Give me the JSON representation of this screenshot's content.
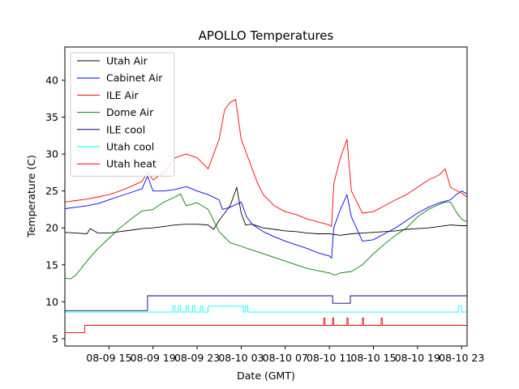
{
  "chart_data": {
    "type": "line",
    "title": "APOLLO Temperatures",
    "xlabel": "Date (GMT)",
    "ylabel": "Temperature (C)",
    "x_unit": "hours since 08-09 11:00 GMT",
    "xlim": [
      0,
      36.5
    ],
    "ylim": [
      4,
      44.5
    ],
    "x_ticks": [
      {
        "value": 4,
        "label": "08-09 15"
      },
      {
        "value": 8,
        "label": "08-09 19"
      },
      {
        "value": 12,
        "label": "08-09 23"
      },
      {
        "value": 16,
        "label": "08-10 03"
      },
      {
        "value": 20,
        "label": "08-10 07"
      },
      {
        "value": 24,
        "label": "08-10 11"
      },
      {
        "value": 28,
        "label": "08-10 15"
      },
      {
        "value": 32,
        "label": "08-10 19"
      },
      {
        "value": 36,
        "label": "08-10 23"
      }
    ],
    "y_ticks": [
      {
        "value": 5,
        "label": "5"
      },
      {
        "value": 10,
        "label": "10"
      },
      {
        "value": 15,
        "label": "15"
      },
      {
        "value": 20,
        "label": "20"
      },
      {
        "value": 25,
        "label": "25"
      },
      {
        "value": 30,
        "label": "30"
      },
      {
        "value": 35,
        "label": "35"
      },
      {
        "value": 40,
        "label": "40"
      }
    ],
    "grid": false,
    "legend_position": "upper-left",
    "series": [
      {
        "name": "Utah Air",
        "color": "#000000",
        "points": [
          [
            0,
            19.4
          ],
          [
            1,
            19.3
          ],
          [
            2,
            19.2
          ],
          [
            2.3,
            19.9
          ],
          [
            3,
            19.3
          ],
          [
            4,
            19.3
          ],
          [
            5,
            19.5
          ],
          [
            6,
            19.7
          ],
          [
            7,
            19.9
          ],
          [
            8,
            20.0
          ],
          [
            9,
            20.2
          ],
          [
            10,
            20.4
          ],
          [
            11,
            20.5
          ],
          [
            12,
            20.5
          ],
          [
            13,
            20.4
          ],
          [
            13.5,
            19.8
          ],
          [
            14,
            21
          ],
          [
            15,
            23
          ],
          [
            15.6,
            25.5
          ],
          [
            16,
            22
          ],
          [
            16.4,
            20.4
          ],
          [
            17,
            20.5
          ],
          [
            18,
            20.0
          ],
          [
            19,
            19.8
          ],
          [
            20,
            19.6
          ],
          [
            21,
            19.5
          ],
          [
            22,
            19.3
          ],
          [
            23,
            19.2
          ],
          [
            24,
            19.2
          ],
          [
            25,
            19.0
          ],
          [
            26,
            19.2
          ],
          [
            27,
            19.3
          ],
          [
            28,
            19.4
          ],
          [
            29,
            19.5
          ],
          [
            30,
            19.6
          ],
          [
            31,
            19.8
          ],
          [
            32,
            19.9
          ],
          [
            33,
            20.0
          ],
          [
            34,
            20.2
          ],
          [
            35,
            20.4
          ],
          [
            36,
            20.3
          ],
          [
            36.5,
            20.3
          ]
        ]
      },
      {
        "name": "Cabinet Air",
        "color": "#0000ff",
        "points": [
          [
            0,
            22.6
          ],
          [
            1,
            22.8
          ],
          [
            2,
            23.0
          ],
          [
            3,
            23.3
          ],
          [
            4,
            23.8
          ],
          [
            5,
            24.3
          ],
          [
            6,
            24.8
          ],
          [
            7,
            25.3
          ],
          [
            7.5,
            27
          ],
          [
            8,
            25
          ],
          [
            9,
            25.0
          ],
          [
            10,
            25.2
          ],
          [
            11,
            25.6
          ],
          [
            12,
            25.0
          ],
          [
            13,
            24.5
          ],
          [
            14,
            23.8
          ],
          [
            14.3,
            22.5
          ],
          [
            15,
            22.8
          ],
          [
            16,
            23.5
          ],
          [
            16.5,
            21.5
          ],
          [
            17,
            20.5
          ],
          [
            18,
            19.5
          ],
          [
            19,
            18.8
          ],
          [
            20,
            18.2
          ],
          [
            21,
            17.7
          ],
          [
            22,
            17.2
          ],
          [
            23,
            16.6
          ],
          [
            24,
            16.2
          ],
          [
            24.2,
            15.9
          ],
          [
            24.4,
            20
          ],
          [
            25,
            22.5
          ],
          [
            25.6,
            24.5
          ],
          [
            26,
            21.5
          ],
          [
            27,
            18.2
          ],
          [
            28,
            18.4
          ],
          [
            29,
            19.2
          ],
          [
            30,
            20.0
          ],
          [
            31,
            21.0
          ],
          [
            32,
            22.0
          ],
          [
            33,
            22.8
          ],
          [
            34,
            23.4
          ],
          [
            35,
            23.8
          ],
          [
            35.5,
            24.5
          ],
          [
            36,
            25.0
          ],
          [
            36.5,
            24.6
          ]
        ]
      },
      {
        "name": "ILE Air",
        "color": "#ff0000",
        "points": [
          [
            0,
            23.5
          ],
          [
            1,
            23.7
          ],
          [
            2,
            23.9
          ],
          [
            3,
            24.2
          ],
          [
            4,
            24.5
          ],
          [
            5,
            25.0
          ],
          [
            6,
            25.6
          ],
          [
            7,
            26.3
          ],
          [
            7.5,
            27.5
          ],
          [
            8,
            26.5
          ],
          [
            9,
            27.5
          ],
          [
            10,
            29.5
          ],
          [
            11,
            30
          ],
          [
            12,
            29.5
          ],
          [
            13,
            28
          ],
          [
            14,
            32
          ],
          [
            14.5,
            36
          ],
          [
            15,
            37
          ],
          [
            15.5,
            37.4
          ],
          [
            16,
            32
          ],
          [
            17,
            28
          ],
          [
            17.5,
            26
          ],
          [
            18,
            24.5
          ],
          [
            19,
            23
          ],
          [
            20,
            22.2
          ],
          [
            21,
            21.8
          ],
          [
            22,
            21.2
          ],
          [
            23,
            20.8
          ],
          [
            24,
            20.4
          ],
          [
            24.2,
            20.2
          ],
          [
            24.4,
            26
          ],
          [
            25,
            29.5
          ],
          [
            25.6,
            32
          ],
          [
            26,
            25
          ],
          [
            27,
            22
          ],
          [
            28,
            22.2
          ],
          [
            29,
            23.0
          ],
          [
            30,
            23.8
          ],
          [
            31,
            24.5
          ],
          [
            32,
            25.5
          ],
          [
            33,
            26.5
          ],
          [
            34,
            27.2
          ],
          [
            34.5,
            28
          ],
          [
            35,
            25.5
          ],
          [
            36,
            24.7
          ],
          [
            36.5,
            24.2
          ]
        ]
      },
      {
        "name": "Dome Air",
        "color": "#008000",
        "points": [
          [
            0,
            13.2
          ],
          [
            0.5,
            13.1
          ],
          [
            1,
            13.6
          ],
          [
            2,
            15.5
          ],
          [
            3,
            17.2
          ],
          [
            4,
            18.6
          ],
          [
            5,
            20.0
          ],
          [
            6,
            21.2
          ],
          [
            7,
            22.3
          ],
          [
            8,
            22.5
          ],
          [
            9,
            23.5
          ],
          [
            10,
            24.2
          ],
          [
            10.5,
            24.6
          ],
          [
            11,
            23
          ],
          [
            12,
            23.4
          ],
          [
            13,
            22.5
          ],
          [
            14,
            19.5
          ],
          [
            15,
            18.0
          ],
          [
            16,
            17.5
          ],
          [
            17,
            17.0
          ],
          [
            18,
            16.5
          ],
          [
            19,
            16.0
          ],
          [
            20,
            15.5
          ],
          [
            21,
            15.0
          ],
          [
            22,
            14.5
          ],
          [
            23,
            14.2
          ],
          [
            24,
            13.9
          ],
          [
            24.5,
            13.6
          ],
          [
            25,
            13.9
          ],
          [
            26,
            14.1
          ],
          [
            27,
            15.0
          ],
          [
            28,
            16.5
          ],
          [
            29,
            17.8
          ],
          [
            30,
            19.0
          ],
          [
            31,
            20.0
          ],
          [
            32,
            21.5
          ],
          [
            33,
            22.5
          ],
          [
            34,
            23.2
          ],
          [
            34.5,
            23.5
          ],
          [
            35,
            23.5
          ],
          [
            35.5,
            22.2
          ],
          [
            36,
            21.2
          ],
          [
            36.5,
            20.8
          ]
        ]
      },
      {
        "name": "ILE cool",
        "color": "#00008b",
        "points": [
          [
            0,
            8.8
          ],
          [
            7.5,
            8.8
          ],
          [
            7.5,
            10.8
          ],
          [
            24.3,
            10.8
          ],
          [
            24.3,
            9.8
          ],
          [
            25.9,
            9.8
          ],
          [
            25.9,
            10.8
          ],
          [
            36.5,
            10.8
          ]
        ]
      },
      {
        "name": "Utah cool",
        "color": "#00ffff",
        "points": [
          [
            0,
            8.6
          ],
          [
            9.8,
            8.6
          ],
          [
            9.8,
            9.4
          ],
          [
            10.0,
            9.4
          ],
          [
            10.0,
            8.6
          ],
          [
            10.3,
            8.6
          ],
          [
            10.3,
            9.4
          ],
          [
            10.5,
            9.4
          ],
          [
            10.5,
            8.6
          ],
          [
            11,
            8.6
          ],
          [
            11,
            9.4
          ],
          [
            11.2,
            9.4
          ],
          [
            11.2,
            8.6
          ],
          [
            11.6,
            8.6
          ],
          [
            11.6,
            9.4
          ],
          [
            11.8,
            9.4
          ],
          [
            11.8,
            8.6
          ],
          [
            12.3,
            8.6
          ],
          [
            12.3,
            9.4
          ],
          [
            12.5,
            9.4
          ],
          [
            12.5,
            8.6
          ],
          [
            13,
            8.6
          ],
          [
            13,
            9.4
          ],
          [
            16.2,
            9.4
          ],
          [
            16.2,
            8.6
          ],
          [
            16.4,
            8.6
          ],
          [
            16.4,
            9.4
          ],
          [
            16.6,
            9.4
          ],
          [
            16.6,
            8.6
          ],
          [
            35.7,
            8.6
          ],
          [
            35.7,
            9.4
          ],
          [
            36.0,
            9.4
          ],
          [
            36.0,
            8.6
          ],
          [
            36.5,
            8.6
          ]
        ]
      },
      {
        "name": "Utah heat",
        "color": "#ff0000",
        "points": [
          [
            0,
            5.8
          ],
          [
            1.8,
            5.8
          ],
          [
            1.8,
            6.8
          ],
          [
            23.5,
            6.8
          ],
          [
            23.5,
            7.8
          ],
          [
            23.6,
            7.8
          ],
          [
            23.6,
            6.8
          ],
          [
            24.3,
            6.8
          ],
          [
            24.3,
            7.8
          ],
          [
            24.4,
            7.8
          ],
          [
            24.4,
            6.8
          ],
          [
            25.6,
            6.8
          ],
          [
            25.6,
            7.8
          ],
          [
            25.7,
            7.8
          ],
          [
            25.7,
            6.8
          ],
          [
            27.0,
            6.8
          ],
          [
            27.0,
            7.8
          ],
          [
            27.1,
            7.8
          ],
          [
            27.1,
            6.8
          ],
          [
            28.7,
            6.8
          ],
          [
            28.7,
            7.8
          ],
          [
            28.8,
            7.8
          ],
          [
            28.8,
            6.8
          ],
          [
            36.5,
            6.8
          ]
        ]
      }
    ]
  }
}
